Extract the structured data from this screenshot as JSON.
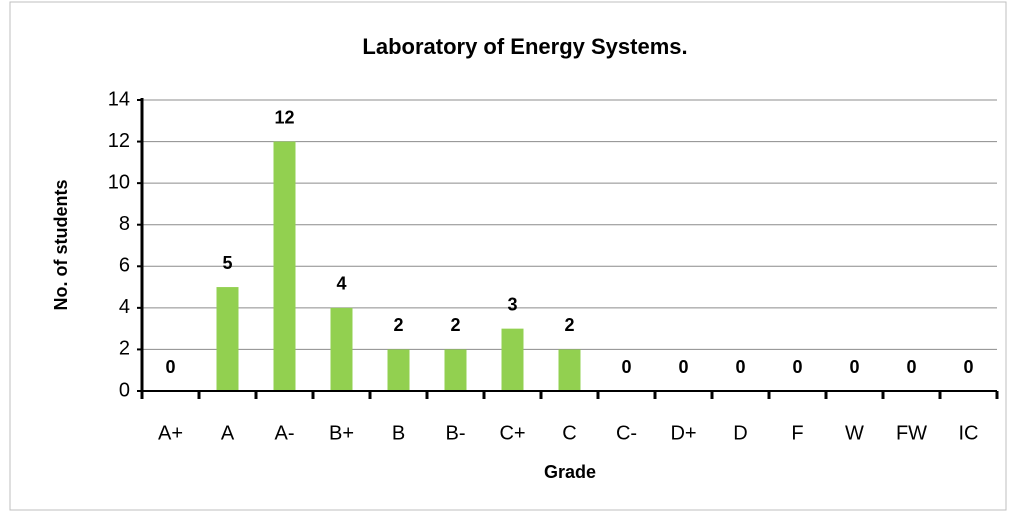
{
  "chart_data": {
    "type": "bar",
    "title": "Laboratory of Energy Systems.",
    "x_label": "Grade",
    "y_label": "No. of students",
    "categories": [
      "A+",
      "A",
      "A-",
      "B+",
      "B",
      "B-",
      "C+",
      "C",
      "C-",
      "D+",
      "D",
      "F",
      "W",
      "FW",
      "IC"
    ],
    "values": [
      0,
      5,
      12,
      4,
      2,
      2,
      3,
      2,
      0,
      0,
      0,
      0,
      0,
      0,
      0
    ],
    "color": "#92d050",
    "ylim": [
      0,
      14
    ],
    "yticks": [
      0,
      2,
      4,
      6,
      8,
      10,
      12,
      14
    ],
    "grid": true
  }
}
